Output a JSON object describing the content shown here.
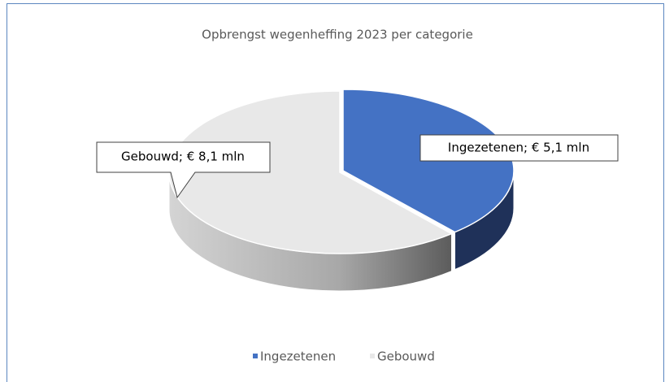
{
  "chart_data": {
    "type": "pie3d",
    "title": "Opbrengst wegenheffing 2023 per categorie",
    "categories": [
      "Ingezetenen",
      "Gebouwd"
    ],
    "values": [
      5.1,
      8.1
    ],
    "value_labels": [
      "Ingezetenen;  € 5,1  mln",
      "Gebouwd;  € 8,1  mln"
    ],
    "colors": [
      "#4472c4",
      "#e8e8e8"
    ],
    "legend": "bottom"
  }
}
